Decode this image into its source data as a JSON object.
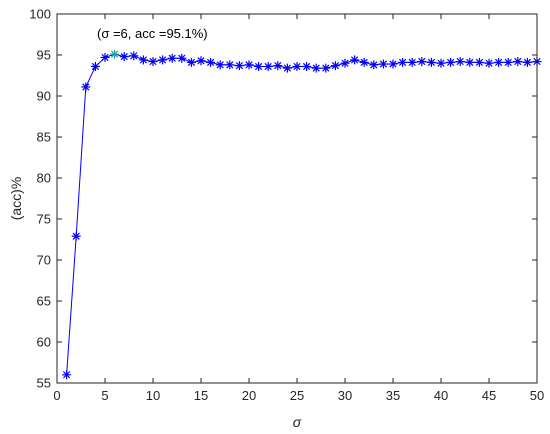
{
  "chart_data": {
    "type": "line",
    "xlabel": "σ",
    "ylabel": "(acc)%",
    "xlim": [
      0,
      50
    ],
    "ylim": [
      55,
      100
    ],
    "xticks": [
      0,
      5,
      10,
      15,
      20,
      25,
      30,
      35,
      40,
      45,
      50
    ],
    "yticks": [
      55,
      60,
      65,
      70,
      75,
      80,
      85,
      90,
      95,
      100
    ],
    "grid": false,
    "series": [
      {
        "marker": "asterisk",
        "color": "#0000ff",
        "x": [
          1,
          2,
          3,
          4,
          5,
          6,
          7,
          8,
          9,
          10,
          11,
          12,
          13,
          14,
          15,
          16,
          17,
          18,
          19,
          20,
          21,
          22,
          23,
          24,
          25,
          26,
          27,
          28,
          29,
          30,
          31,
          32,
          33,
          34,
          35,
          36,
          37,
          38,
          39,
          40,
          41,
          42,
          43,
          44,
          45,
          46,
          47,
          48,
          49,
          50
        ],
        "y": [
          56.0,
          72.9,
          91.1,
          93.6,
          94.7,
          95.1,
          94.8,
          94.9,
          94.4,
          94.2,
          94.4,
          94.6,
          94.6,
          94.1,
          94.3,
          94.1,
          93.8,
          93.8,
          93.7,
          93.8,
          93.6,
          93.6,
          93.7,
          93.4,
          93.6,
          93.6,
          93.4,
          93.4,
          93.7,
          94.0,
          94.4,
          94.1,
          93.8,
          93.9,
          93.9,
          94.1,
          94.1,
          94.2,
          94.1,
          94.0,
          94.1,
          94.2,
          94.1,
          94.1,
          94.0,
          94.1,
          94.1,
          94.2,
          94.1,
          94.2
        ]
      }
    ],
    "highlight": {
      "x": 6,
      "y": 95.1,
      "color": "#1ea3a3",
      "label": "(σ =6, acc =95.1%)"
    }
  }
}
